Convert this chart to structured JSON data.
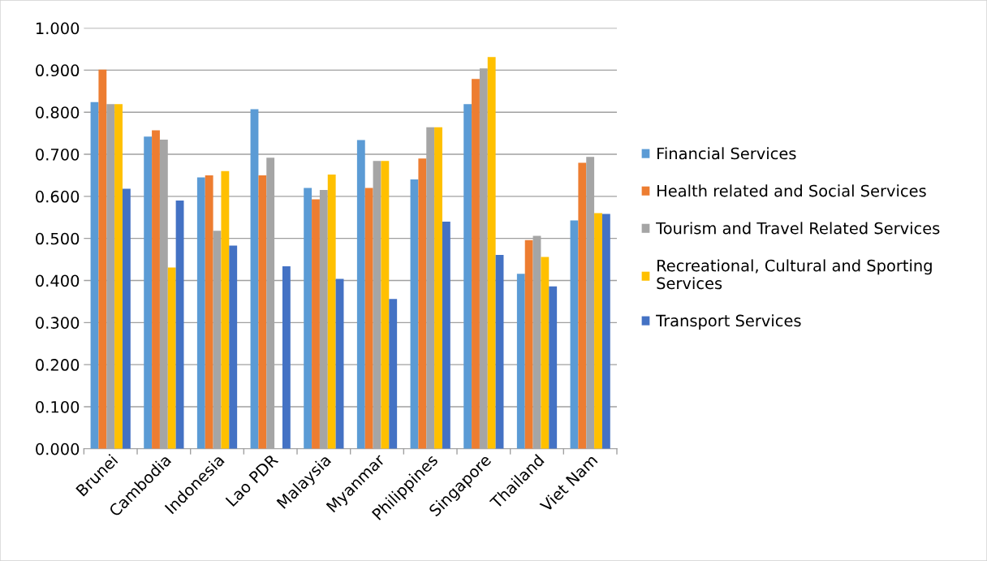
{
  "chart_data": {
    "type": "bar",
    "categories": [
      "Brunei",
      "Cambodia",
      "Indonesia",
      "Lao PDR",
      "Malaysia",
      "Myanmar",
      "Philippines",
      "Singapore",
      "Thailand",
      "Viet Nam"
    ],
    "series": [
      {
        "name": "Financial Services",
        "color": "#5b9bd5",
        "values": [
          0.824,
          0.742,
          0.645,
          0.807,
          0.62,
          0.734,
          0.64,
          0.819,
          0.416,
          0.543
        ]
      },
      {
        "name": "Health related and Social Services",
        "color": "#ed7d31",
        "values": [
          0.901,
          0.757,
          0.65,
          0.65,
          0.593,
          0.62,
          0.69,
          0.879,
          0.496,
          0.68
        ]
      },
      {
        "name": "Tourism and Travel Related Services",
        "color": "#a5a5a5",
        "values": [
          0.819,
          0.735,
          0.518,
          0.692,
          0.615,
          0.684,
          0.764,
          0.904,
          0.506,
          0.694
        ]
      },
      {
        "name": "Recreational, Cultural and Sporting Services",
        "color": "#ffc000",
        "values": [
          0.819,
          0.431,
          0.66,
          null,
          0.652,
          0.684,
          0.764,
          0.931,
          0.456,
          0.56
        ]
      },
      {
        "name": "Transport Services",
        "color": "#4472c4",
        "values": [
          0.618,
          0.59,
          0.483,
          0.434,
          0.404,
          0.356,
          0.54,
          0.461,
          0.386,
          0.558
        ]
      }
    ],
    "ylim": [
      0,
      1
    ],
    "yticks": [
      {
        "value": 0,
        "label": "0.000"
      },
      {
        "value": 0.1,
        "label": "0.100"
      },
      {
        "value": 0.2,
        "label": "0.200"
      },
      {
        "value": 0.3,
        "label": "0.300"
      },
      {
        "value": 0.4,
        "label": "0.400"
      },
      {
        "value": 0.5,
        "label": "0.500"
      },
      {
        "value": 0.6,
        "label": "0.600"
      },
      {
        "value": 0.7,
        "label": "0.700"
      },
      {
        "value": 0.8,
        "label": "0.800"
      },
      {
        "value": 0.9,
        "label": "0.900"
      },
      {
        "value": 1,
        "label": "1.000"
      }
    ],
    "grid": "y",
    "legend": "right"
  }
}
